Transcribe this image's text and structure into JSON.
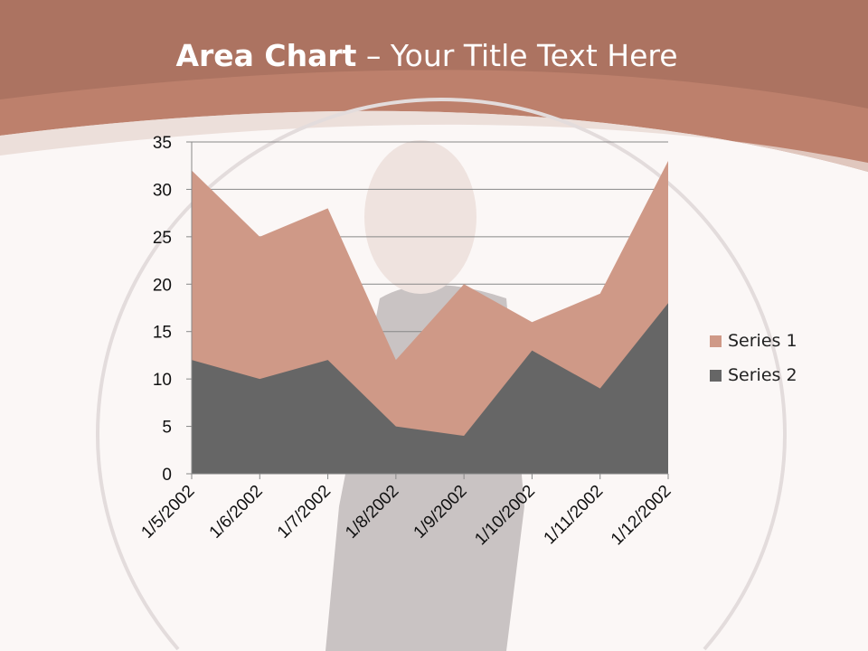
{
  "slide": {
    "title_bold": "Area Chart",
    "title_rest": " – Your Title Text Here"
  },
  "colors": {
    "header": "#b87a68",
    "series1": "#cf9987",
    "series2": "#666666",
    "background": "#fbf7f6"
  },
  "chart_data": {
    "type": "area",
    "categories": [
      "1/5/2002",
      "1/6/2002",
      "1/7/2002",
      "1/8/2002",
      "1/9/2002",
      "1/10/2002",
      "1/11/2002",
      "1/12/2002"
    ],
    "series": [
      {
        "name": "Series 1",
        "values": [
          32,
          25,
          28,
          12,
          20,
          16,
          19,
          33
        ]
      },
      {
        "name": "Series 2",
        "values": [
          12,
          10,
          12,
          5,
          4,
          13,
          9,
          18
        ]
      }
    ],
    "ylim": [
      0,
      35
    ],
    "yticks": [
      0,
      5,
      10,
      15,
      20,
      25,
      30,
      35
    ],
    "grid": true,
    "legend": "right"
  }
}
